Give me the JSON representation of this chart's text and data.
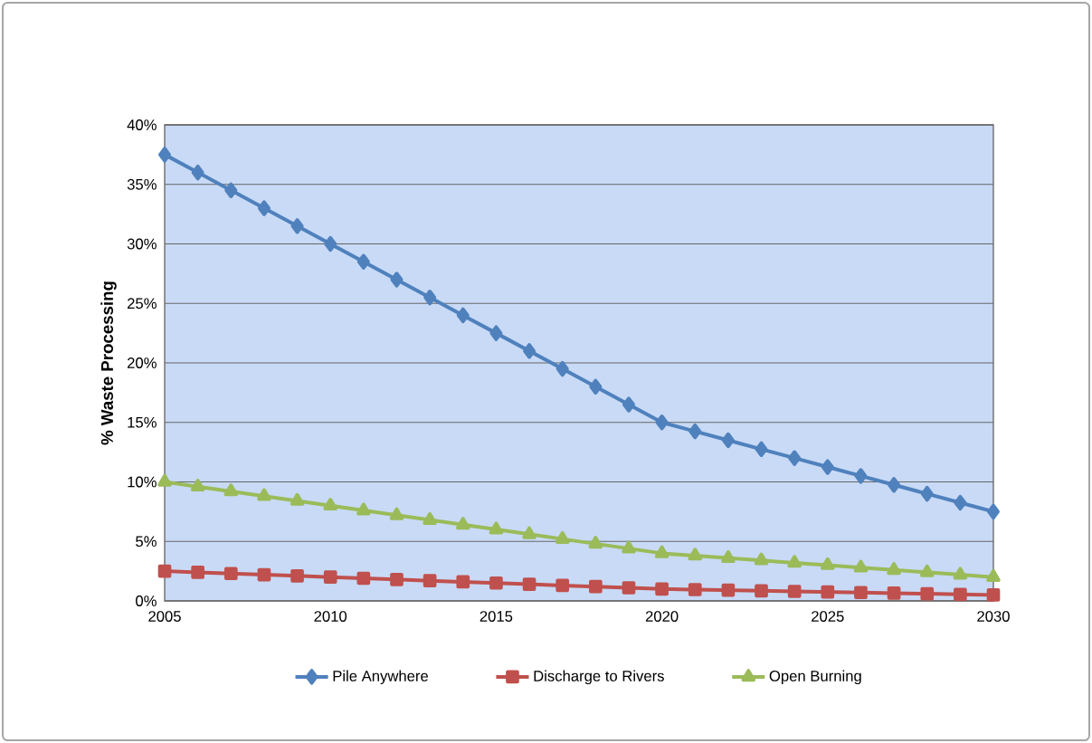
{
  "chart_data": {
    "type": "line",
    "ylabel": "% Waste Processing",
    "x": [
      2005,
      2006,
      2007,
      2008,
      2009,
      2010,
      2011,
      2012,
      2013,
      2014,
      2015,
      2016,
      2017,
      2018,
      2019,
      2020,
      2021,
      2022,
      2023,
      2024,
      2025,
      2026,
      2027,
      2028,
      2029,
      2030
    ],
    "series": [
      {
        "name": "Pile Anywhere",
        "color": "#4f81bd",
        "marker": "diamond",
        "values": [
          37.5,
          36,
          34.5,
          33,
          31.5,
          30,
          28.5,
          27,
          25.5,
          24,
          22.5,
          21,
          19.5,
          18,
          16.5,
          15,
          14.25,
          13.5,
          12.75,
          12,
          11.25,
          10.5,
          9.75,
          9,
          8.25,
          7.5
        ]
      },
      {
        "name": "Discharge to Rivers",
        "color": "#c0504d",
        "marker": "square",
        "values": [
          2.5,
          2.4,
          2.3,
          2.2,
          2.1,
          2.0,
          1.9,
          1.8,
          1.7,
          1.6,
          1.5,
          1.4,
          1.3,
          1.2,
          1.1,
          1.0,
          0.95,
          0.9,
          0.85,
          0.8,
          0.75,
          0.7,
          0.65,
          0.6,
          0.55,
          0.5
        ]
      },
      {
        "name": "Open Burning",
        "color": "#9bbb59",
        "marker": "triangle",
        "values": [
          10,
          9.6,
          9.2,
          8.8,
          8.4,
          8.0,
          7.6,
          7.2,
          6.8,
          6.4,
          6.0,
          5.6,
          5.2,
          4.8,
          4.4,
          4.0,
          3.8,
          3.6,
          3.4,
          3.2,
          3.0,
          2.8,
          2.6,
          2.4,
          2.2,
          2.0
        ]
      }
    ],
    "xlim": [
      2005,
      2030
    ],
    "xticks": [
      2005,
      2010,
      2015,
      2020,
      2025,
      2030
    ],
    "ylim": [
      0,
      40
    ],
    "yticks": [
      {
        "value": 0,
        "label": "0%"
      },
      {
        "value": 5,
        "label": "5%"
      },
      {
        "value": 10,
        "label": "10%"
      },
      {
        "value": 15,
        "label": "15%"
      },
      {
        "value": 20,
        "label": "20%"
      },
      {
        "value": 25,
        "label": "25%"
      },
      {
        "value": 30,
        "label": "30%"
      },
      {
        "value": 35,
        "label": "35%"
      },
      {
        "value": 40,
        "label": "40%"
      }
    ],
    "grid": "y",
    "legend": "bottom",
    "line_style": "solid"
  }
}
